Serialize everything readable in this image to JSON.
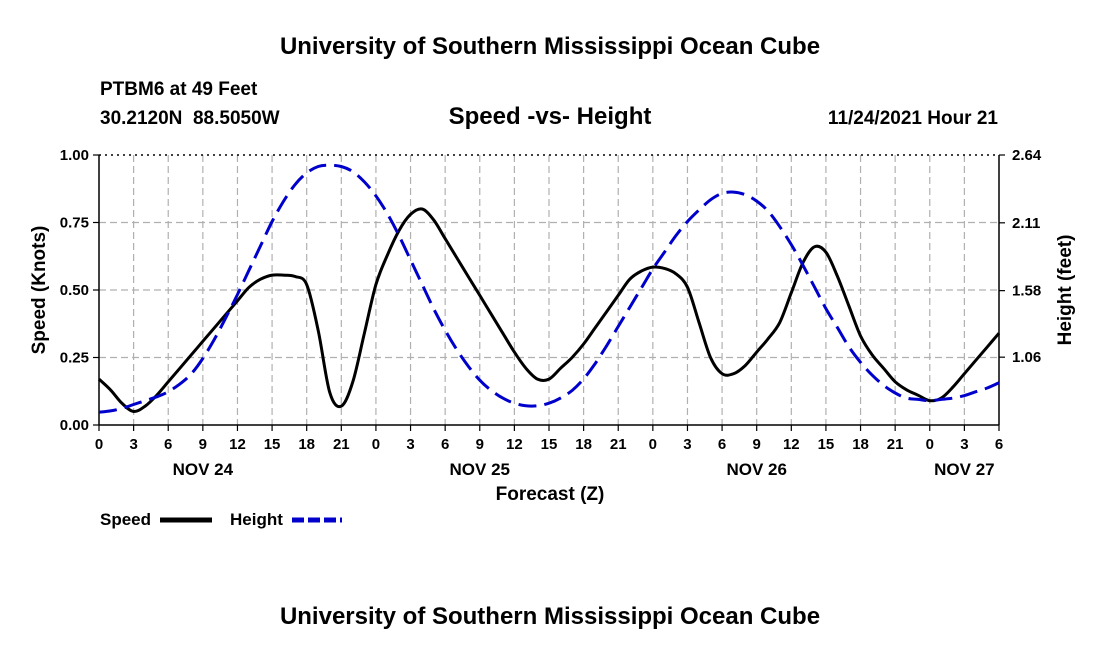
{
  "page": {
    "title_top": "University of Southern Mississippi Ocean Cube",
    "title_bottom": "University of Southern Mississippi Ocean Cube",
    "station": "PTBM6 at 49 Feet",
    "coords": "30.2120N  88.5050W",
    "timestamp": "11/24/2021 Hour 21"
  },
  "colors": {
    "speed": "#000000",
    "height": "#0000cc",
    "grid": "#b0b0b0"
  },
  "chart_data": {
    "type": "line",
    "title": "Speed -vs- Height",
    "xlabel": "Forecast (Z)",
    "ylabel": "Speed (Knots)",
    "y2label": "Height (feet)",
    "x_range_hours": [
      0,
      78
    ],
    "ylim": [
      0,
      1
    ],
    "yticks": [
      0.0,
      0.25,
      0.5,
      0.75,
      1.0
    ],
    "ytick_labels": [
      "0.00",
      "0.25",
      "0.50",
      "0.75",
      "1.00"
    ],
    "y2lim": [
      0.53,
      2.64
    ],
    "y2ticks": [
      1.06,
      1.58,
      2.11,
      2.64
    ],
    "y2tick_labels": [
      "1.06",
      "1.58",
      "2.11",
      "2.64"
    ],
    "xtick_labels": [
      "0",
      "3",
      "6",
      "9",
      "12",
      "15",
      "18",
      "21",
      "0",
      "3",
      "6",
      "9",
      "12",
      "15",
      "18",
      "21",
      "0",
      "3",
      "6",
      "9",
      "12",
      "15",
      "18",
      "21",
      "0",
      "3",
      "6"
    ],
    "date_labels": [
      {
        "text": "NOV 24",
        "hour": 9
      },
      {
        "text": "NOV 25",
        "hour": 33
      },
      {
        "text": "NOV 26",
        "hour": 57
      },
      {
        "text": "NOV 27",
        "hour": 75
      }
    ],
    "grid": true,
    "series": [
      {
        "name": "Speed",
        "axis": "left",
        "style": "solid",
        "x": [
          0,
          1,
          2,
          3,
          4,
          5,
          6,
          7,
          8,
          9,
          10,
          11,
          12,
          13,
          14,
          15,
          16,
          17,
          18,
          19,
          20,
          21,
          22,
          23,
          24,
          25,
          26,
          27,
          28,
          29,
          30,
          31,
          32,
          33,
          34,
          35,
          36,
          37,
          38,
          39,
          40,
          41,
          42,
          43,
          44,
          45,
          46,
          47,
          48,
          49,
          50,
          51,
          52,
          53,
          54,
          55,
          56,
          57,
          58,
          59,
          60,
          61,
          62,
          63,
          64,
          65,
          66,
          67,
          68,
          69,
          70,
          71,
          72,
          73,
          74,
          75,
          76,
          77,
          78
        ],
        "values": [
          0.17,
          0.13,
          0.08,
          0.05,
          0.07,
          0.11,
          0.16,
          0.21,
          0.26,
          0.31,
          0.36,
          0.41,
          0.46,
          0.51,
          0.54,
          0.555,
          0.555,
          0.55,
          0.52,
          0.35,
          0.12,
          0.07,
          0.16,
          0.34,
          0.52,
          0.63,
          0.72,
          0.78,
          0.8,
          0.76,
          0.69,
          0.62,
          0.55,
          0.48,
          0.41,
          0.34,
          0.27,
          0.21,
          0.17,
          0.17,
          0.21,
          0.25,
          0.3,
          0.36,
          0.42,
          0.48,
          0.54,
          0.57,
          0.585,
          0.58,
          0.56,
          0.51,
          0.38,
          0.25,
          0.19,
          0.19,
          0.22,
          0.27,
          0.32,
          0.38,
          0.49,
          0.6,
          0.66,
          0.64,
          0.55,
          0.44,
          0.33,
          0.26,
          0.21,
          0.16,
          0.13,
          0.11,
          0.09,
          0.1,
          0.14,
          0.19,
          0.24,
          0.29,
          0.34
        ]
      },
      {
        "name": "Height",
        "axis": "right",
        "style": "dashed",
        "x": [
          0,
          1,
          2,
          3,
          4,
          5,
          6,
          7,
          8,
          9,
          10,
          11,
          12,
          13,
          14,
          15,
          16,
          17,
          18,
          19,
          20,
          21,
          22,
          23,
          24,
          25,
          26,
          27,
          28,
          29,
          30,
          31,
          32,
          33,
          34,
          35,
          36,
          37,
          38,
          39,
          40,
          41,
          42,
          43,
          44,
          45,
          46,
          47,
          48,
          49,
          50,
          51,
          52,
          53,
          54,
          55,
          56,
          57,
          58,
          59,
          60,
          61,
          62,
          63,
          64,
          65,
          66,
          67,
          68,
          69,
          70,
          71,
          72,
          73,
          74,
          75,
          76,
          77,
          78
        ],
        "values": [
          0.63,
          0.64,
          0.66,
          0.69,
          0.72,
          0.75,
          0.79,
          0.85,
          0.93,
          1.05,
          1.2,
          1.37,
          1.55,
          1.74,
          1.93,
          2.12,
          2.28,
          2.41,
          2.5,
          2.55,
          2.56,
          2.55,
          2.51,
          2.43,
          2.32,
          2.18,
          2.01,
          1.82,
          1.63,
          1.44,
          1.27,
          1.12,
          0.99,
          0.88,
          0.8,
          0.74,
          0.7,
          0.68,
          0.68,
          0.7,
          0.74,
          0.8,
          0.89,
          1.01,
          1.15,
          1.3,
          1.45,
          1.6,
          1.75,
          1.88,
          2.01,
          2.12,
          2.21,
          2.29,
          2.34,
          2.35,
          2.33,
          2.28,
          2.2,
          2.08,
          1.94,
          1.78,
          1.61,
          1.44,
          1.29,
          1.14,
          1.02,
          0.92,
          0.84,
          0.78,
          0.74,
          0.73,
          0.72,
          0.73,
          0.74,
          0.76,
          0.79,
          0.82,
          0.86
        ]
      }
    ],
    "legend": [
      {
        "label": "Speed",
        "style": "solid"
      },
      {
        "label": "Height",
        "style": "dashed"
      }
    ]
  }
}
